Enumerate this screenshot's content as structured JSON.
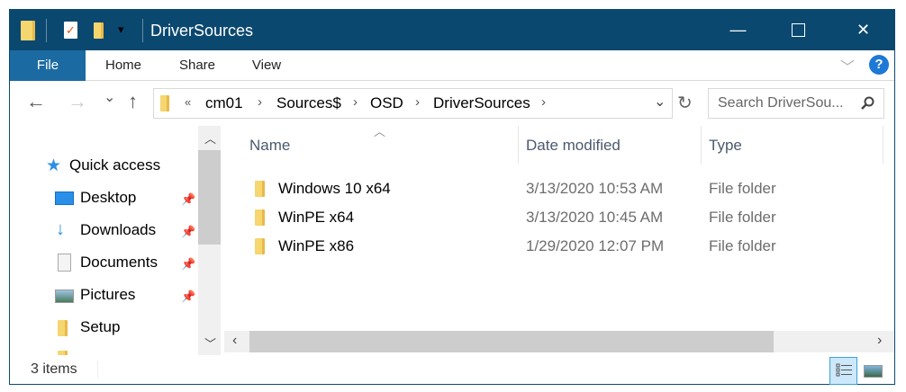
{
  "titlebar": {
    "title": "DriverSources",
    "minimize": "—",
    "maximize": "☐",
    "close": "✕",
    "qat_dropdown": "▾"
  },
  "ribbon": {
    "tabs": [
      "File",
      "Home",
      "Share",
      "View"
    ],
    "expand": "﹀",
    "help": "?"
  },
  "nav": {
    "back": "←",
    "forward": "→",
    "recent": "⌄",
    "up": "↑",
    "overflow": "«",
    "breadcrumbs": [
      "cm01",
      "Sources$",
      "OSD",
      "DriverSources"
    ],
    "separator": "›",
    "dropdown": "⌄",
    "refresh": "↻",
    "search_placeholder": "Search DriverSou...",
    "search_icon": "search-icon"
  },
  "navpane": {
    "quick_access": "Quick access",
    "items": [
      {
        "label": "Desktop",
        "icon": "desktop-icon",
        "pinned": true
      },
      {
        "label": "Downloads",
        "icon": "download-icon",
        "pinned": true
      },
      {
        "label": "Documents",
        "icon": "documents-icon",
        "pinned": true
      },
      {
        "label": "Pictures",
        "icon": "pictures-icon",
        "pinned": true
      },
      {
        "label": "Setup",
        "icon": "folder-icon",
        "pinned": false
      }
    ]
  },
  "list": {
    "columns": [
      "Name",
      "Date modified",
      "Type"
    ],
    "sort_indicator": "︿",
    "rows": [
      {
        "name": "Windows 10 x64",
        "date": "3/13/2020 10:53 AM",
        "type": "File folder"
      },
      {
        "name": "WinPE x64",
        "date": "3/13/2020 10:45 AM",
        "type": "File folder"
      },
      {
        "name": "WinPE x86",
        "date": "1/29/2020 12:07 PM",
        "type": "File folder"
      }
    ]
  },
  "status": {
    "count": "3 items"
  },
  "colors": {
    "titlebar": "#0a4870",
    "file_tab": "#1c6aa2",
    "folder": "#f5d66f",
    "help": "#1e78d6"
  }
}
